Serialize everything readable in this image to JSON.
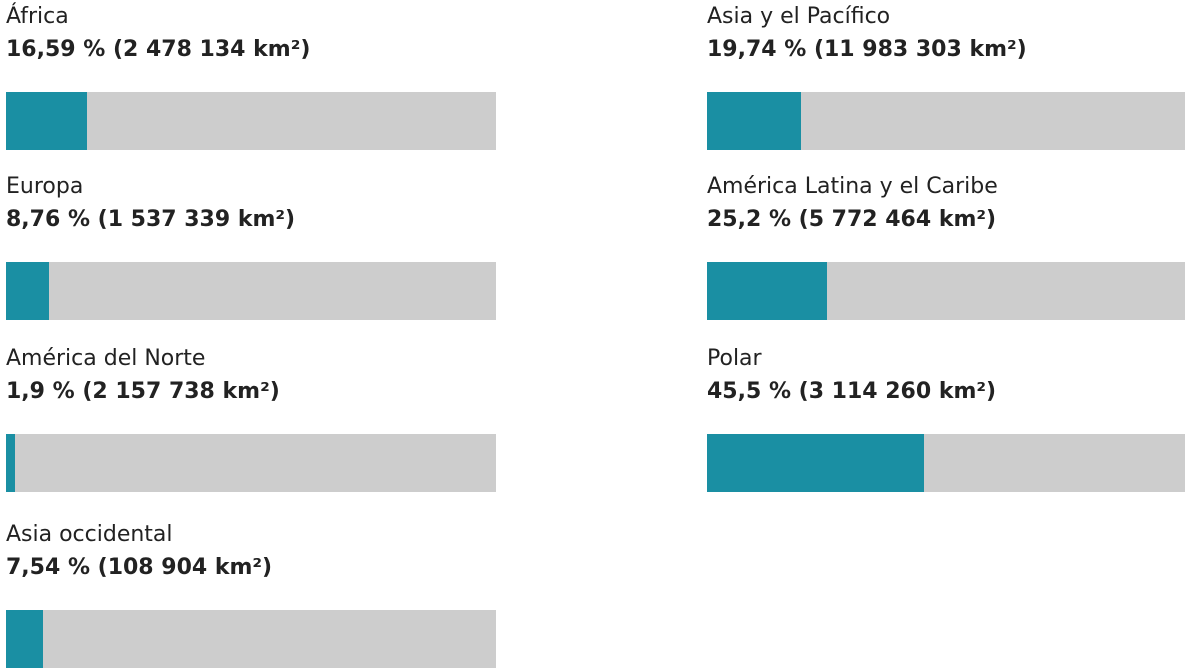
{
  "chart_data": {
    "type": "progress",
    "xlim": [
      0,
      100
    ],
    "color": "#1a8fa3",
    "track_color": "#cdcdcd",
    "items": [
      {
        "name": "África",
        "value": 16.59,
        "value_label": "16,59 % (2 478 134 km²)"
      },
      {
        "name": "Europa",
        "value": 8.76,
        "value_label": "8,76 % (1 537 339 km²)"
      },
      {
        "name": "América del Norte",
        "value": 1.9,
        "value_label": "1,9 % (2 157 738 km²)"
      },
      {
        "name": "Asia occidental",
        "value": 7.54,
        "value_label": "7,54 % (108 904 km²)"
      },
      {
        "name": "Asia y el Pacífico",
        "value": 19.74,
        "value_label": "19,74 % (11 983 303 km²)"
      },
      {
        "name": "América Latina y el Caribe",
        "value": 25.2,
        "value_label": "25,2 % (5 772 464 km²)"
      },
      {
        "name": "Polar",
        "value": 45.5,
        "value_label": "45,5 % (3 114 260 km²)"
      }
    ]
  }
}
